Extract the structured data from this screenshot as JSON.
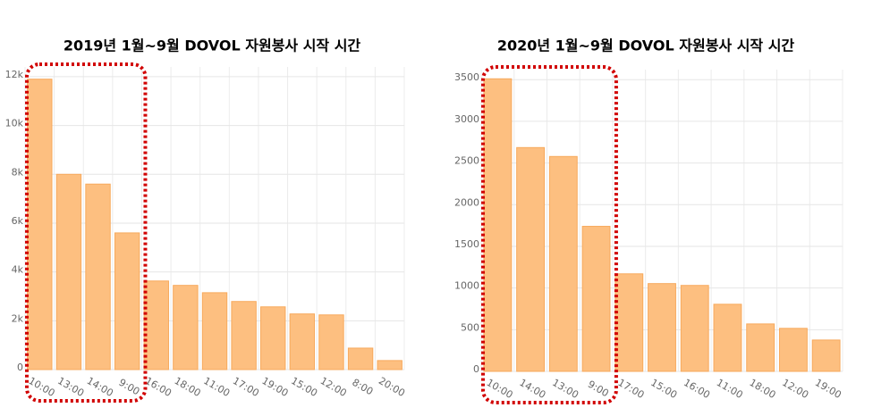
{
  "chart_data": [
    {
      "type": "bar",
      "title": "2019년 1월~9월 DOVOL  자원봉사 시작 시간",
      "categories": [
        "10:00",
        "13:00",
        "14:00",
        "9:00",
        "16:00",
        "18:00",
        "11:00",
        "17:00",
        "19:00",
        "15:00",
        "12:00",
        "8:00",
        "20:00"
      ],
      "values": [
        11900,
        8000,
        7600,
        5600,
        3630,
        3450,
        3150,
        2790,
        2570,
        2280,
        2240,
        880,
        370
      ],
      "color": "#fdbf80",
      "ylim": [
        0,
        12400
      ],
      "yticks": [
        0,
        {
          "value": 2000,
          "label": "2k"
        },
        {
          "value": 4000,
          "label": "4k"
        },
        {
          "value": 6000,
          "label": "6k"
        },
        {
          "value": 8000,
          "label": "8k"
        },
        {
          "value": 10000,
          "label": "10k"
        },
        {
          "value": 12000,
          "label": "12k"
        }
      ],
      "grid": true
    },
    {
      "type": "bar",
      "title": "2020년 1월~9월 DOVOL  자원봉사 시작 시간",
      "categories": [
        "10:00",
        "14:00",
        "13:00",
        "9:00",
        "17:00",
        "15:00",
        "16:00",
        "11:00",
        "18:00",
        "12:00",
        "19:00"
      ],
      "values": [
        3510,
        2685,
        2578,
        1740,
        1170,
        1053,
        1031,
        805,
        569,
        516,
        376
      ],
      "color": "#fdbf80",
      "ylim": [
        0,
        3620
      ],
      "yticks": [
        0,
        500,
        1000,
        1500,
        2000,
        2500,
        3000,
        3500
      ],
      "grid": true
    }
  ]
}
